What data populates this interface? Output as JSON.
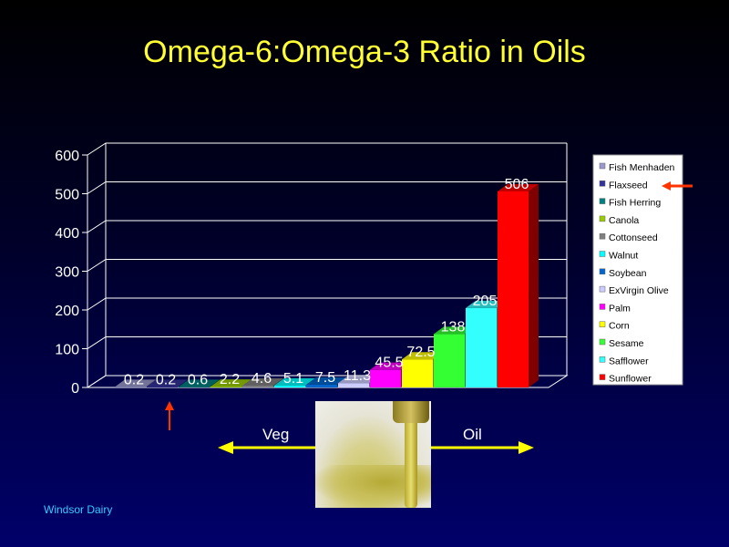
{
  "title": "Omega-6:Omega-3  Ratio  in  Oils",
  "footer": "Windsor  Dairy",
  "annotations": {
    "left_label": "Veg",
    "right_label": "Oil"
  },
  "colors": {
    "title": "#ffff33",
    "arrow_yellow": "#ffff00",
    "marker_red": "#ff3300",
    "footer": "#33ccff"
  },
  "chart_data": {
    "type": "bar",
    "categories": [
      "Fish Menhaden",
      "Flaxseed",
      "Fish Herring",
      "Canola",
      "Cottonseed",
      "Walnut",
      "Soybean",
      "ExVirgin Olive",
      "Palm",
      "Corn",
      "Sesame",
      "Safflower",
      "Sunflower"
    ],
    "values": [
      0.2,
      0.2,
      0.6,
      2.2,
      4.6,
      5.1,
      7.5,
      11.3,
      45.5,
      72.5,
      138,
      205,
      506
    ],
    "data_labels": [
      "0.2",
      "0.2",
      "0.6",
      "2.2",
      "4.6",
      "5.1",
      "7.5",
      "11.3",
      "45.5",
      "72.5",
      "138",
      "205",
      "506"
    ],
    "colors": [
      "#9999cc",
      "#333399",
      "#008080",
      "#99cc00",
      "#808080",
      "#00ffff",
      "#0066cc",
      "#ccccff",
      "#ff00ff",
      "#ffff00",
      "#33ff33",
      "#33ffff",
      "#ff0000"
    ],
    "yticks": [
      "0",
      "100",
      "200",
      "300",
      "400",
      "500",
      "600"
    ],
    "ylim": [
      0,
      600
    ],
    "title": "",
    "xlabel": "",
    "ylabel": "",
    "legend_position": "right",
    "grid": true
  }
}
